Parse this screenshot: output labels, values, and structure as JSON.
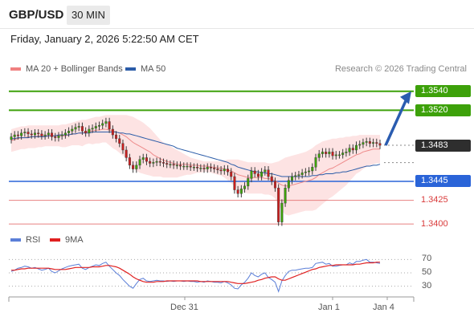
{
  "header": {
    "pair": "GBP/USD",
    "timeframe": "30 MIN",
    "datetime": "Friday, January 2, 2026 5:22:50 AM CET"
  },
  "legend": {
    "items": [
      {
        "label": "MA 20 + Bollinger Bands",
        "color": "#f08080"
      },
      {
        "label": "MA 50",
        "color": "#2b5ca8"
      }
    ],
    "credit": "Research © 2026 Trading Central"
  },
  "rsi_legend": {
    "items": [
      {
        "label": "RSI",
        "color": "#5b7fd8"
      },
      {
        "label": "9MA",
        "color": "#e02020"
      }
    ]
  },
  "chart_data": [
    {
      "type": "candlestick",
      "title": "",
      "ylim": [
        1.3395,
        1.3555
      ],
      "x_ticks": [
        "Dec 31",
        "Jan 1",
        "Jan 4"
      ],
      "levels": [
        {
          "value": 1.354,
          "label": "1.3540",
          "style": "resistance"
        },
        {
          "value": 1.352,
          "label": "1.3520",
          "style": "resistance"
        },
        {
          "value": 1.3483,
          "label": "1.3483",
          "style": "current"
        },
        {
          "value": 1.3445,
          "label": "1.3445",
          "style": "pivot"
        },
        {
          "value": 1.3425,
          "label": "1.3425",
          "style": "support"
        },
        {
          "value": 1.34,
          "label": "1.3400",
          "style": "support"
        }
      ],
      "last_price": 1.3483,
      "forecast": {
        "from": 1.3483,
        "to": 1.354,
        "direction": "up"
      },
      "series": [
        {
          "name": "MA 20 + Bollinger Bands",
          "color": "#f08080"
        },
        {
          "name": "MA 50",
          "color": "#2b5ca8"
        }
      ],
      "close": [
        1.3492,
        1.3494,
        1.3493,
        1.3496,
        1.3497,
        1.3495,
        1.3494,
        1.3496,
        1.3495,
        1.3493,
        1.3494,
        1.3496,
        1.3492,
        1.3491,
        1.3493,
        1.3494,
        1.3496,
        1.3498,
        1.35,
        1.3502,
        1.3503,
        1.3498,
        1.3496,
        1.35,
        1.3501,
        1.3503,
        1.3504,
        1.3506,
        1.3508,
        1.35,
        1.3494,
        1.349,
        1.3485,
        1.3478,
        1.347,
        1.3462,
        1.3458,
        1.3462,
        1.3468,
        1.347,
        1.3466,
        1.3464,
        1.3465,
        1.3466,
        1.3465,
        1.3464,
        1.3463,
        1.3463,
        1.3462,
        1.3462,
        1.3461,
        1.3461,
        1.3461,
        1.346,
        1.346,
        1.3459,
        1.3459,
        1.3458,
        1.346,
        1.3459,
        1.3458,
        1.3457,
        1.3456,
        1.3458,
        1.3455,
        1.345,
        1.3436,
        1.3432,
        1.3437,
        1.344,
        1.3448,
        1.3456,
        1.3453,
        1.345,
        1.3455,
        1.3457,
        1.345,
        1.3445,
        1.3438,
        1.3402,
        1.3422,
        1.3438,
        1.3446,
        1.345,
        1.3451,
        1.3452,
        1.3454,
        1.3455,
        1.3456,
        1.346,
        1.347,
        1.3474,
        1.3476,
        1.3474,
        1.3476,
        1.3472,
        1.3473,
        1.3473,
        1.3475,
        1.3476,
        1.348,
        1.3478,
        1.3483,
        1.3484,
        1.3486,
        1.3487,
        1.3485,
        1.3486,
        1.3485,
        1.3483
      ],
      "ma20": [
        1.3488,
        1.3489,
        1.349,
        1.3491,
        1.3491,
        1.3492,
        1.3492,
        1.3492,
        1.3493,
        1.3493,
        1.3493,
        1.3493,
        1.3493,
        1.3493,
        1.3493,
        1.3493,
        1.3493,
        1.3494,
        1.3495,
        1.3495,
        1.3496,
        1.3496,
        1.3497,
        1.3498,
        1.3498,
        1.3499,
        1.3499,
        1.35,
        1.35,
        1.3499,
        1.3498,
        1.3497,
        1.3496,
        1.3494,
        1.3492,
        1.3489,
        1.3486,
        1.3484,
        1.3482,
        1.348,
        1.3478,
        1.3476,
        1.3473,
        1.3471,
        1.3469,
        1.3467,
        1.3466,
        1.3465,
        1.3464,
        1.3463,
        1.3463,
        1.3463,
        1.3463,
        1.3462,
        1.3462,
        1.3462,
        1.3461,
        1.3461,
        1.3461,
        1.346,
        1.346,
        1.3459,
        1.3459,
        1.3458,
        1.3457,
        1.3456,
        1.3454,
        1.3452,
        1.3451,
        1.345,
        1.3449,
        1.3449,
        1.3449,
        1.3449,
        1.3449,
        1.3448,
        1.3448,
        1.3447,
        1.3446,
        1.3443,
        1.3441,
        1.344,
        1.344,
        1.3441,
        1.3442,
        1.3443,
        1.3444,
        1.3445,
        1.3446,
        1.3447,
        1.3449,
        1.3452,
        1.3454,
        1.3456,
        1.3458,
        1.3459,
        1.3461,
        1.3463,
        1.3465,
        1.3467,
        1.3469,
        1.3471,
        1.3473,
        1.3474,
        1.3476,
        1.3477,
        1.3478,
        1.3479,
        1.3479,
        1.3479
      ],
      "bb_upper": [
        1.35,
        1.3501,
        1.3502,
        1.3503,
        1.3503,
        1.3504,
        1.3504,
        1.3504,
        1.3504,
        1.3504,
        1.3504,
        1.3504,
        1.3504,
        1.3504,
        1.3504,
        1.3505,
        1.3505,
        1.3506,
        1.3507,
        1.3508,
        1.3509,
        1.351,
        1.351,
        1.3511,
        1.3512,
        1.3513,
        1.3513,
        1.3514,
        1.3515,
        1.3515,
        1.3515,
        1.3515,
        1.3515,
        1.3515,
        1.3515,
        1.3514,
        1.3513,
        1.3511,
        1.3509,
        1.3507,
        1.3504,
        1.3501,
        1.3497,
        1.3493,
        1.3489,
        1.3486,
        1.3484,
        1.3482,
        1.348,
        1.3478,
        1.3476,
        1.3474,
        1.3472,
        1.347,
        1.3469,
        1.3468,
        1.3467,
        1.3466,
        1.3466,
        1.3466,
        1.3466,
        1.3466,
        1.3466,
        1.3467,
        1.3468,
        1.3468,
        1.3468,
        1.3468,
        1.3467,
        1.3466,
        1.3465,
        1.3465,
        1.3465,
        1.3465,
        1.3465,
        1.3465,
        1.3464,
        1.3464,
        1.3465,
        1.3466,
        1.3468,
        1.347,
        1.3471,
        1.3472,
        1.3473,
        1.3474,
        1.3475,
        1.3476,
        1.3478,
        1.348,
        1.3483,
        1.3485,
        1.3487,
        1.3488,
        1.3489,
        1.349,
        1.349,
        1.3491,
        1.3491,
        1.3492,
        1.3492,
        1.3493,
        1.3493,
        1.3494,
        1.3494,
        1.3494,
        1.3494,
        1.3494,
        1.3494,
        1.3494
      ],
      "bb_lower": [
        1.3476,
        1.3477,
        1.3478,
        1.3479,
        1.3479,
        1.348,
        1.348,
        1.348,
        1.3481,
        1.3481,
        1.3482,
        1.3482,
        1.3482,
        1.3482,
        1.3482,
        1.3481,
        1.3481,
        1.3482,
        1.3483,
        1.3483,
        1.3483,
        1.3482,
        1.3484,
        1.3485,
        1.3484,
        1.3485,
        1.3485,
        1.3486,
        1.3486,
        1.3483,
        1.348,
        1.3478,
        1.3475,
        1.3472,
        1.3469,
        1.3464,
        1.3459,
        1.3456,
        1.3454,
        1.3453,
        1.3452,
        1.3451,
        1.345,
        1.345,
        1.345,
        1.3449,
        1.3449,
        1.3449,
        1.3449,
        1.3449,
        1.345,
        1.3451,
        1.3452,
        1.3452,
        1.3453,
        1.3454,
        1.3454,
        1.3455,
        1.3455,
        1.3454,
        1.3453,
        1.3452,
        1.3451,
        1.3449,
        1.3446,
        1.3443,
        1.344,
        1.3436,
        1.3434,
        1.3433,
        1.3432,
        1.3432,
        1.3432,
        1.3432,
        1.3432,
        1.3431,
        1.3431,
        1.343,
        1.3427,
        1.342,
        1.3414,
        1.341,
        1.3409,
        1.341,
        1.3411,
        1.3412,
        1.3413,
        1.3414,
        1.3414,
        1.3414,
        1.3415,
        1.3418,
        1.3421,
        1.3424,
        1.3427,
        1.3429,
        1.3432,
        1.3435,
        1.3438,
        1.3441,
        1.3445,
        1.3449,
        1.3453,
        1.3455,
        1.3458,
        1.346,
        1.3462,
        1.3463,
        1.3464,
        1.3464
      ],
      "ma50": [
        1.349,
        1.349,
        1.3491,
        1.3491,
        1.3491,
        1.3491,
        1.3492,
        1.3492,
        1.3492,
        1.3492,
        1.3492,
        1.3493,
        1.3493,
        1.3493,
        1.3494,
        1.3494,
        1.3494,
        1.3494,
        1.3495,
        1.3495,
        1.3496,
        1.3496,
        1.3496,
        1.3496,
        1.3497,
        1.3497,
        1.3497,
        1.3497,
        1.3497,
        1.3497,
        1.3497,
        1.3497,
        1.3496,
        1.3496,
        1.3495,
        1.3495,
        1.3494,
        1.3493,
        1.3492,
        1.3491,
        1.349,
        1.3489,
        1.3488,
        1.3487,
        1.3486,
        1.3485,
        1.3484,
        1.3483,
        1.3482,
        1.348,
        1.3479,
        1.3478,
        1.3477,
        1.3476,
        1.3475,
        1.3474,
        1.3473,
        1.3472,
        1.3471,
        1.347,
        1.3469,
        1.3468,
        1.3467,
        1.3466,
        1.3465,
        1.3463,
        1.3462,
        1.346,
        1.3459,
        1.3458,
        1.3457,
        1.3456,
        1.3455,
        1.3455,
        1.3454,
        1.3454,
        1.3453,
        1.3453,
        1.3452,
        1.3451,
        1.345,
        1.345,
        1.345,
        1.345,
        1.345,
        1.345,
        1.345,
        1.345,
        1.345,
        1.3451,
        1.3451,
        1.3452,
        1.3452,
        1.3453,
        1.3453,
        1.3453,
        1.3454,
        1.3454,
        1.3455,
        1.3455,
        1.3456,
        1.3457,
        1.3458,
        1.3459,
        1.346,
        1.3461,
        1.3461,
        1.3462,
        1.3462,
        1.3463
      ]
    },
    {
      "type": "line",
      "title": "",
      "ylim": [
        20,
        80
      ],
      "y_ticks": [
        70,
        50,
        30
      ],
      "x_ticks": [
        "Dec 31",
        "Jan 1",
        "Jan 4"
      ],
      "series": [
        {
          "name": "RSI",
          "color": "#5b7fd8",
          "values": [
            52,
            54,
            57,
            58,
            60,
            59,
            57,
            58,
            56,
            54,
            55,
            57,
            52,
            50,
            53,
            56,
            58,
            60,
            61,
            62,
            63,
            57,
            55,
            58,
            60,
            62,
            61,
            64,
            66,
            60,
            55,
            50,
            46,
            40,
            35,
            30,
            27,
            34,
            40,
            42,
            38,
            37,
            38,
            39,
            38,
            38,
            37,
            38,
            37,
            38,
            38,
            37,
            38,
            37,
            37,
            36,
            37,
            36,
            38,
            37,
            36,
            36,
            35,
            37,
            35,
            32,
            27,
            26,
            32,
            36,
            42,
            50,
            46,
            44,
            48,
            50,
            43,
            40,
            36,
            22,
            38,
            46,
            52,
            54,
            54,
            55,
            56,
            57,
            57,
            58,
            64,
            65,
            66,
            63,
            64,
            60,
            60,
            61,
            62,
            62,
            65,
            63,
            67,
            67,
            69,
            70,
            66,
            66,
            65,
            64
          ]
        },
        {
          "name": "9MA",
          "color": "#e02020",
          "values": [
            54,
            54,
            55,
            56,
            56,
            57,
            57,
            57,
            57,
            57,
            57,
            57,
            56,
            55,
            55,
            55,
            55,
            56,
            57,
            58,
            58,
            58,
            58,
            58,
            59,
            59,
            59,
            60,
            61,
            61,
            60,
            59,
            57,
            54,
            51,
            48,
            44,
            41,
            39,
            37,
            36,
            36,
            36,
            37,
            37,
            37,
            38,
            38,
            38,
            38,
            38,
            38,
            38,
            38,
            38,
            38,
            37,
            37,
            37,
            37,
            37,
            37,
            37,
            37,
            37,
            36,
            35,
            34,
            34,
            34,
            35,
            36,
            37,
            39,
            40,
            42,
            43,
            44,
            44,
            41,
            39,
            39,
            41,
            43,
            45,
            47,
            49,
            51,
            53,
            55,
            56,
            58,
            59,
            60,
            61,
            61,
            62,
            62,
            62,
            62,
            62,
            62,
            63,
            63,
            64,
            65,
            65,
            65,
            66,
            66
          ]
        }
      ]
    }
  ]
}
